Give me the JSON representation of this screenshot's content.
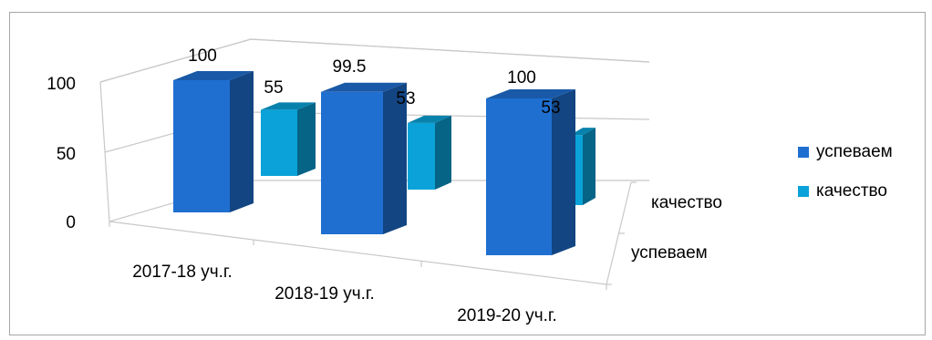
{
  "chart_data": {
    "type": "bar",
    "style": "3d-clustered-column",
    "categories": [
      "2017-18 уч.г.",
      "2018-19 уч.г.",
      "2019-20 уч.г."
    ],
    "series": [
      {
        "name": "успеваем",
        "values": [
          100,
          99.5,
          100
        ],
        "color": "#1f6fd1",
        "value_labels": [
          "100",
          "99.5",
          "100"
        ]
      },
      {
        "name": "качество",
        "values": [
          55,
          53,
          53
        ],
        "color": "#0aa2d8",
        "value_labels": [
          "55",
          "53",
          "53"
        ]
      }
    ],
    "y_ticks": [
      "0",
      "50",
      "100"
    ],
    "ylim": [
      0,
      100
    ],
    "depth_labels": [
      "качество",
      "успеваем"
    ],
    "legend_position": "right",
    "grid": true
  }
}
